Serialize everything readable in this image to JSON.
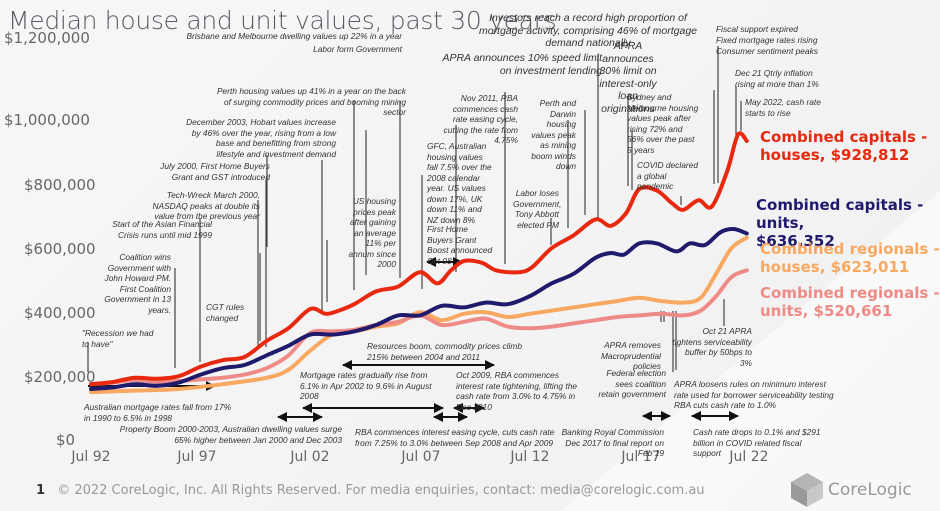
{
  "title": "Median house and unit values, past 30 years",
  "footer": {
    "page_number": "1",
    "copyright": "© 2022 CoreLogic, Inc. All Rights Reserved. For media enquiries, contact: media@corelogic.com.au",
    "brand": "CoreLogic"
  },
  "chart_data": {
    "type": "line",
    "title": "Median house and unit values, past 30 years",
    "xlabel": "",
    "ylabel": "",
    "ylim": [
      0,
      1200000
    ],
    "xlim": [
      1992.5,
      2022.5
    ],
    "yticks": [
      "$0",
      "$200,000",
      "$400,000",
      "$600,000",
      "$800,000",
      "$1,000,000",
      "$1,200,000"
    ],
    "ytick_values": [
      0,
      200000,
      400000,
      600000,
      800000,
      1000000,
      1200000
    ],
    "xticks": [
      "Jul 92",
      "Jul 97",
      "Jul 02",
      "Jul 07",
      "Jul 12",
      "Jul 17",
      "Jul 22"
    ],
    "xtick_values": [
      1992.5,
      1997.5,
      2002.5,
      2007.5,
      2012.5,
      2017.5,
      2022.5
    ],
    "grid": false,
    "legend": "direct-labels-right",
    "series": [
      {
        "name": "Combined capitals - houses",
        "label": "Combined capitals - houses, $928,812",
        "color": "#e8290f",
        "x": [
          1992.5,
          1993.5,
          1994.5,
          1995.5,
          1996.5,
          1997.5,
          1998.5,
          1999.5,
          2000.5,
          2001.5,
          2002.5,
          2003.2,
          2003.8,
          2004.5,
          2005.5,
          2006.5,
          2007.5,
          2008.3,
          2008.9,
          2009.5,
          2010.3,
          2011.0,
          2012.0,
          2012.6,
          2013.5,
          2014.5,
          2015.5,
          2016.2,
          2016.9,
          2017.5,
          2018.3,
          2019.0,
          2019.5,
          2020.2,
          2020.8,
          2021.5,
          2022.0,
          2022.4
        ],
        "values": [
          165000,
          172000,
          185000,
          182000,
          190000,
          220000,
          240000,
          250000,
          300000,
          340000,
          400000,
          385000,
          395000,
          415000,
          455000,
          470000,
          515000,
          480000,
          520000,
          550000,
          545000,
          520000,
          515000,
          530000,
          590000,
          630000,
          680000,
          660000,
          700000,
          775000,
          770000,
          730000,
          710000,
          740000,
          720000,
          830000,
          945000,
          925000
        ]
      },
      {
        "name": "Combined capitals - units",
        "label": "Combined capitals - units, $636,352",
        "color": "#1f1a6b",
        "x": [
          1992.5,
          1993.5,
          1994.5,
          1995.5,
          1996.5,
          1997.5,
          1998.5,
          1999.5,
          2000.5,
          2001.5,
          2002.5,
          2003.5,
          2004.5,
          2005.5,
          2006.5,
          2007.5,
          2008.5,
          2009.5,
          2010.5,
          2011.5,
          2012.5,
          2013.5,
          2014.5,
          2015.5,
          2016.2,
          2016.8,
          2017.5,
          2018.3,
          2019.2,
          2019.8,
          2020.5,
          2021.2,
          2021.8,
          2022.4
        ],
        "values": [
          150000,
          155000,
          165000,
          160000,
          170000,
          195000,
          215000,
          225000,
          255000,
          285000,
          320000,
          320000,
          330000,
          350000,
          380000,
          380000,
          410000,
          405000,
          420000,
          415000,
          440000,
          480000,
          510000,
          560000,
          575000,
          570000,
          605000,
          605000,
          580000,
          605000,
          600000,
          640000,
          650000,
          636000
        ]
      },
      {
        "name": "Combined regionals - houses",
        "label": "Combined regionals - houses, $623,011",
        "color": "#f9a862",
        "x": [
          1992.5,
          1994.5,
          1996.5,
          1998.5,
          2000.5,
          2001.5,
          2002.5,
          2003.5,
          2004.5,
          2005.5,
          2006.5,
          2007.5,
          2008.5,
          2009.5,
          2010.5,
          2011.5,
          2012.5,
          2013.5,
          2014.5,
          2015.5,
          2016.5,
          2017.5,
          2018.5,
          2019.5,
          2020.3,
          2021.0,
          2021.7,
          2022.4
        ],
        "values": [
          140000,
          145000,
          150000,
          165000,
          185000,
          210000,
          270000,
          320000,
          330000,
          345000,
          355000,
          390000,
          365000,
          385000,
          390000,
          375000,
          385000,
          395000,
          405000,
          415000,
          425000,
          435000,
          425000,
          420000,
          435000,
          510000,
          590000,
          623000
        ]
      },
      {
        "name": "Combined regionals - units",
        "label": "Combined regionals - units, $520,661",
        "color": "#ee8b86",
        "x": [
          1992.5,
          1993.5,
          1994.5,
          1995.5,
          1996.5,
          1997.5,
          1998.5,
          1999.5,
          2000.5,
          2001.5,
          2002.5,
          2003.5,
          2004.5,
          2005.5,
          2006.5,
          2007.5,
          2008.5,
          2009.5,
          2010.5,
          2011.5,
          2012.5,
          2013.5,
          2014.5,
          2015.5,
          2016.5,
          2017.5,
          2018.5,
          2019.5,
          2020.3,
          2021.0,
          2021.7,
          2022.4
        ],
        "values": [
          165000,
          170000,
          178000,
          172000,
          175000,
          180000,
          185000,
          195000,
          215000,
          255000,
          325000,
          330000,
          335000,
          350000,
          360000,
          380000,
          350000,
          360000,
          370000,
          345000,
          340000,
          345000,
          355000,
          365000,
          375000,
          380000,
          385000,
          380000,
          395000,
          440000,
          500000,
          521000
        ]
      }
    ],
    "annotations": [
      "Brisbane and Melbourne dwelling values up 22% in a year",
      "Labor form Government",
      "Perth housing values up 41% in a year on the back of surging commodity prices and booming mining sector",
      "December 2003, Hobart values increase by 46% over the year, rising from a low base and benefitting from strong lifestyle and investment demand",
      "July 2000, First Home Buyers Grant and GST introduced",
      "Tech-Wreck March 2000, NASDAQ peaks at double its value from the previous year",
      "Start of the Asian Financial Crisis runs until mid 1999",
      "Coalition wins Government with John Howard PM. First Coalition Government in 13 years.",
      "CGT rules changed",
      "\"Recession we had to have\"",
      "US housing prices peak after gaining an average 11% per annum since 2000",
      "GFC, Australian housing values fall 7.5% over the 2008 calendar year. US values down 17%, UK down 11% and NZ down 8%",
      "First Home Buyers Grant Boost announced Oct 08",
      "Nov 2011, RBA commences cash rate easing cycle, cutting the rate from 4.75%",
      "APRA announces 10% speed limit on investment lending",
      "Investors reach a record high proportion of mortgage activity, comprising 46% of mortgage demand nationally",
      "APRA announces 30% limit on interest-only loan originations",
      "Perth and Darwin housing values peak as mining boom winds down",
      "Labor loses Government, Tony Abbott elected PM",
      "Sydney and Melbourne housing values peak after rising 72% and 56% over the past 5 years",
      "COVID declared a global pandemic",
      "Fiscal support expired",
      "Fixed mortgage rates rising",
      "Consumer sentiment peaks",
      "Dec 21 Qtrly inflation rising at more than 1%",
      "May 2022, cash rate starts to rise",
      "Australian mortgage rates fall from 17% in 1990 to 6.5% in 1998",
      "Resources boom, commodity prices climb 215% between 2004 and 2011",
      "Mortgage rates gradually rise from 6.1% in Apr 2002 to 9.6% in August 2008",
      "Oct 2009, RBA commences interest rate tightening, lifting the cash rate from 3.0% to 4.75% in Dec 2010",
      "Property Boom 2000-2003, Australian dwelling values surge 65% higher between Jan 2000 and Dec 2003",
      "RBA commences interest easing cycle, cuts cash rate from 7.25% to 3.0% between Sep 2008 and Apr 2009",
      "APRA removes Macroprudential policies",
      "Federal election sees coalition retain government",
      "APRA loosens rules on minimum interest rate used for borrower serviceability testing",
      "RBA cuts cash rate to 1.0%",
      "Oct 21 APRA tightens serviceability buffer by 50bps to 3%",
      "Banking Royal Commission Dec 2017 to final report on Feb 19",
      "Cash rate drops to 0.1% and $291 billion in COVID related fiscal support"
    ]
  },
  "labels": {
    "cap_houses_1": "Combined capitals -",
    "cap_houses_2": "houses, $928,812",
    "cap_units_1": "Combined capitals - units,",
    "cap_units_2": "$636,352",
    "reg_houses_1": "Combined regionals -",
    "reg_houses_2": "houses, $623,011",
    "reg_units_1": "Combined regionals -",
    "reg_units_2": "units, $520,661"
  }
}
